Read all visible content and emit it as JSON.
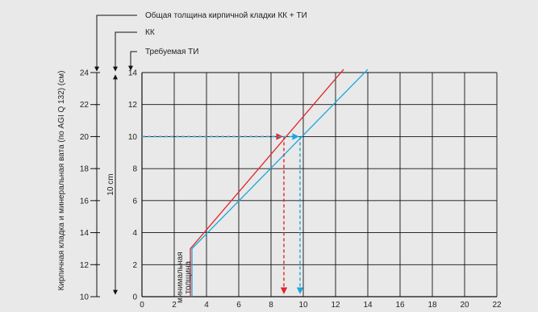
{
  "chart_data": {
    "type": "line",
    "xlim": [
      0,
      22
    ],
    "ylim": [
      0,
      14
    ],
    "x_ticks": [
      "0",
      "2",
      "4",
      "6",
      "8",
      "10",
      "12",
      "14",
      "16",
      "18",
      "20",
      "22"
    ],
    "y_ticks": [
      "0",
      "2",
      "4",
      "6",
      "8",
      "10",
      "12",
      "14"
    ],
    "axis_kk_ticks": [
      "10",
      "12",
      "14",
      "16",
      "18",
      "20",
      "22",
      "24"
    ],
    "axis_total_ticks": [
      "10",
      "12",
      "14",
      "16",
      "18",
      "20",
      "22",
      "24"
    ],
    "ylabel": "Кирпичная кладка и минеральная вата (по AGI Q 132) (см)",
    "span_label": "10 cm",
    "header_labels": {
      "total": "Общая толщина кирпичной кладки КК + ТИ",
      "kk": "КК",
      "ti": "Требуемая ТИ"
    },
    "annotation": [
      "минимальная",
      "толщина"
    ],
    "colors": {
      "red": "#e0242b",
      "blue": "#1ba7dc",
      "grid": "#111111"
    },
    "series": [
      {
        "color": "red",
        "x": [
          3.0,
          3.0,
          12.5
        ],
        "y": [
          0,
          3.0,
          14.2
        ]
      },
      {
        "color": "blue",
        "x": [
          3.1,
          3.1,
          14.0
        ],
        "y": [
          0,
          3.0,
          14.2
        ]
      }
    ],
    "guides": [
      {
        "color": "red",
        "from": [
          0,
          10
        ],
        "to": [
          8.8,
          10
        ],
        "drop_x": 8.8
      },
      {
        "color": "blue",
        "from": [
          0,
          10
        ],
        "to": [
          9.8,
          10
        ],
        "drop_x": 9.8
      }
    ]
  }
}
